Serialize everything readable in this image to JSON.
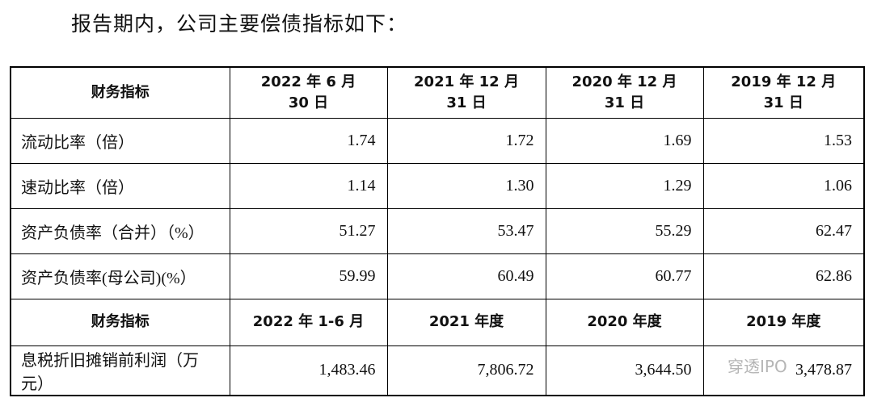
{
  "intro": "报告期内，公司主要偿债指标如下：",
  "table": {
    "header": [
      "财务指标",
      "2022 年 6 月\n30 日",
      "2021 年 12 月\n31 日",
      "2020 年 12 月\n31 日",
      "2019 年 12 月\n31 日"
    ],
    "rows": [
      [
        "流动比率（倍）",
        "1.74",
        "1.72",
        "1.69",
        "1.53"
      ],
      [
        "速动比率（倍）",
        "1.14",
        "1.30",
        "1.29",
        "1.06"
      ],
      [
        "资产负债率（合并）（%）",
        "51.27",
        "53.47",
        "55.29",
        "62.47"
      ],
      [
        "资产负债率(母公司)(%）",
        "59.99",
        "60.49",
        "60.77",
        "62.86"
      ]
    ],
    "header2": [
      "财务指标",
      "2022 年 1-6 月",
      "2021 年度",
      "2020 年度",
      "2019 年度"
    ],
    "rows2": [
      [
        "息税折旧摊销前利润（万元）",
        "1,483.46",
        "7,806.72",
        "3,644.50",
        "3,478.87"
      ]
    ]
  },
  "watermark": "穿透IPO"
}
